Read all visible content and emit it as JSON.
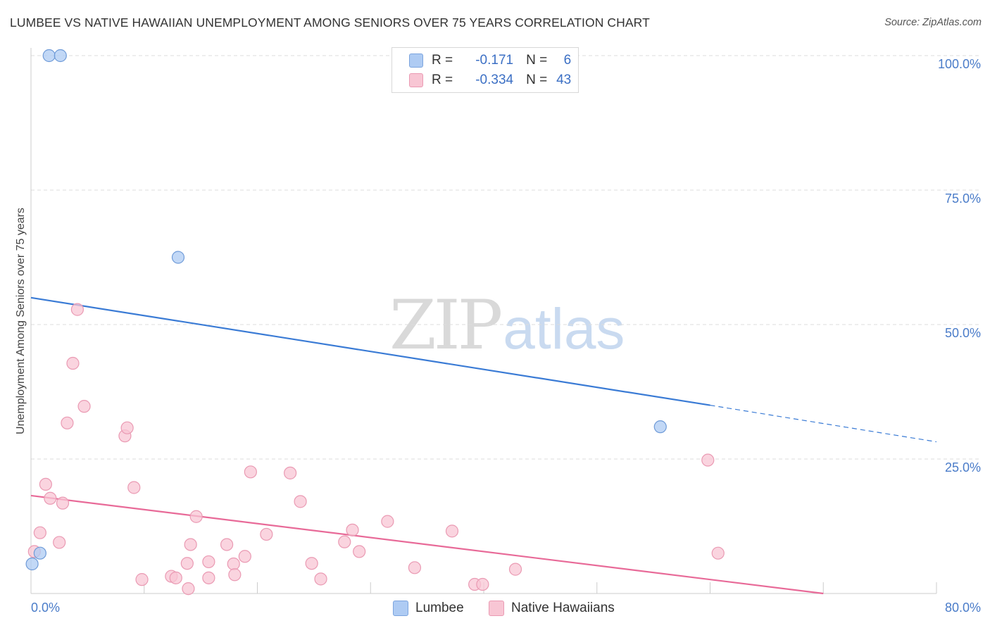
{
  "title": "LUMBEE VS NATIVE HAWAIIAN UNEMPLOYMENT AMONG SENIORS OVER 75 YEARS CORRELATION CHART",
  "source": "Source: ZipAtlas.com",
  "watermark": {
    "zip": "ZIP",
    "atlas": "atlas"
  },
  "legend": {
    "rows": [
      {
        "r_label": "R =",
        "r_value": "-0.171",
        "n_label": "N =",
        "n_value": "6",
        "color": "#aecbf3",
        "border": "#7ba4de"
      },
      {
        "r_label": "R =",
        "r_value": "-0.334",
        "n_label": "N =",
        "n_value": "43",
        "color": "#f8c6d4",
        "border": "#ea9ab3"
      }
    ]
  },
  "bottom_legend": [
    {
      "label": "Lumbee",
      "color": "#aecbf3",
      "border": "#7ba4de"
    },
    {
      "label": "Native Hawaiians",
      "color": "#f8c6d4",
      "border": "#ea9ab3"
    }
  ],
  "chart_data": {
    "type": "scatter",
    "title": "LUMBEE VS NATIVE HAWAIIAN UNEMPLOYMENT AMONG SENIORS OVER 75 YEARS CORRELATION CHART",
    "xlabel": "",
    "ylabel": "Unemployment Among Seniors over 75 years",
    "xlim": [
      0,
      80
    ],
    "ylim": [
      0,
      100
    ],
    "x_tick_labels": [
      "0.0%",
      "80.0%"
    ],
    "y_ticks": [
      25,
      50,
      75,
      100
    ],
    "y_tick_labels": [
      "25.0%",
      "50.0%",
      "75.0%",
      "100.0%"
    ],
    "grid": "horizontal dashed",
    "legend_placement": "top-center",
    "series": [
      {
        "name": "Lumbee",
        "color": "#3a7bd5",
        "fill": "#aecbf3",
        "stroke": "#6f9bd8",
        "points": [
          [
            1.6,
            100
          ],
          [
            2.6,
            100
          ],
          [
            13.0,
            62.5
          ],
          [
            0.1,
            5.5
          ],
          [
            0.8,
            7.5
          ],
          [
            55.6,
            31.0
          ]
        ],
        "trend": {
          "x0": 0,
          "y0": 55.0,
          "x1": 60.0,
          "y1": 35.0,
          "dash_to_x": 80,
          "dash_to_y": 28.2
        }
      },
      {
        "name": "Native Hawaiians",
        "color": "#e86a98",
        "fill": "#f8c6d4",
        "stroke": "#ea9ab3",
        "points": [
          [
            4.1,
            52.8
          ],
          [
            3.7,
            42.8
          ],
          [
            4.7,
            34.8
          ],
          [
            3.2,
            31.7
          ],
          [
            8.3,
            29.3
          ],
          [
            8.5,
            30.8
          ],
          [
            1.3,
            20.3
          ],
          [
            1.7,
            17.7
          ],
          [
            2.8,
            16.8
          ],
          [
            9.1,
            19.7
          ],
          [
            19.4,
            22.6
          ],
          [
            22.9,
            22.4
          ],
          [
            23.8,
            17.1
          ],
          [
            14.6,
            14.3
          ],
          [
            0.8,
            11.3
          ],
          [
            2.5,
            9.5
          ],
          [
            14.1,
            9.1
          ],
          [
            17.3,
            9.1
          ],
          [
            20.8,
            11.0
          ],
          [
            28.4,
            11.8
          ],
          [
            31.5,
            13.4
          ],
          [
            37.2,
            11.6
          ],
          [
            59.8,
            24.8
          ],
          [
            60.7,
            7.5
          ],
          [
            27.7,
            9.6
          ],
          [
            29.0,
            7.8
          ],
          [
            18.9,
            6.9
          ],
          [
            15.7,
            5.9
          ],
          [
            13.8,
            5.6
          ],
          [
            17.9,
            5.5
          ],
          [
            24.8,
            5.6
          ],
          [
            33.9,
            4.8
          ],
          [
            42.8,
            4.5
          ],
          [
            12.4,
            3.2
          ],
          [
            12.8,
            2.9
          ],
          [
            15.7,
            2.9
          ],
          [
            18.0,
            3.5
          ],
          [
            25.6,
            2.7
          ],
          [
            9.8,
            2.6
          ],
          [
            13.9,
            0.9
          ],
          [
            39.2,
            1.7
          ],
          [
            39.9,
            1.7
          ],
          [
            0.3,
            7.8
          ]
        ],
        "trend": {
          "x0": 0,
          "y0": 18.2,
          "x1": 70.0,
          "y1": 0
        }
      }
    ]
  }
}
